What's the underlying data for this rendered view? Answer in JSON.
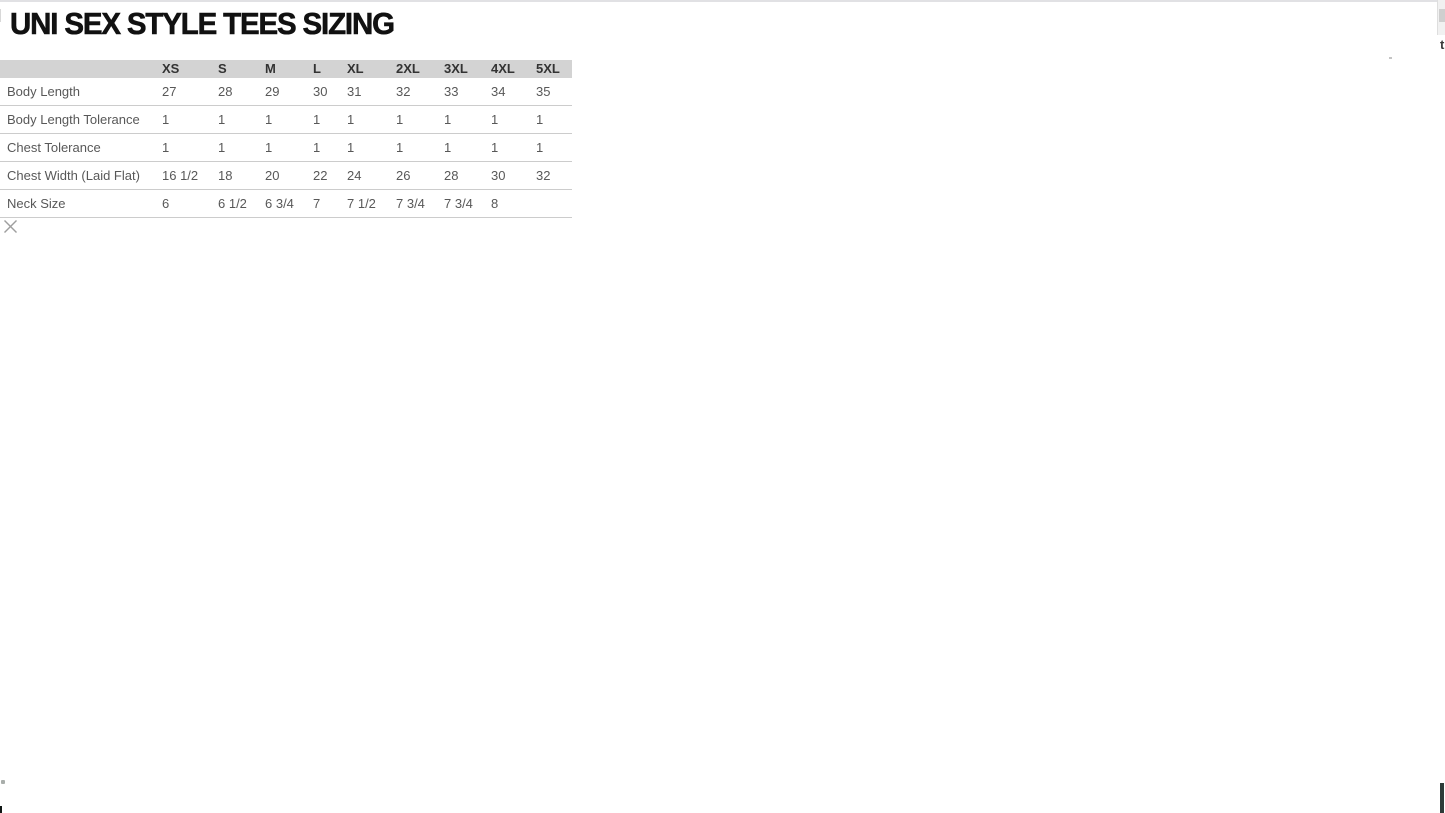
{
  "page": {
    "title": "UNI SEX STYLE TEES SIZING"
  },
  "sizing_table": {
    "size_columns": [
      "XS",
      "S",
      "M",
      "L",
      "XL",
      "2XL",
      "3XL",
      "4XL",
      "5XL"
    ],
    "rows": [
      {
        "label": "Body Length",
        "values": [
          "27",
          "28",
          "29",
          "30",
          "31",
          "32",
          "33",
          "34",
          "35"
        ]
      },
      {
        "label": "Body Length Tolerance",
        "values": [
          "1",
          "1",
          "1",
          "1",
          "1",
          "1",
          "1",
          "1",
          "1"
        ]
      },
      {
        "label": "Chest Tolerance",
        "values": [
          "1",
          "1",
          "1",
          "1",
          "1",
          "1",
          "1",
          "1",
          "1"
        ]
      },
      {
        "label": "Chest Width (Laid Flat)",
        "values": [
          "16 1/2",
          "18",
          "20",
          "22",
          "24",
          "26",
          "28",
          "30",
          "32"
        ]
      },
      {
        "label": "Neck Size",
        "values": [
          "6",
          "6 1/2",
          "6 3/4",
          "7",
          "7 1/2",
          "7 3/4",
          "7 3/4",
          "8",
          ""
        ]
      }
    ]
  },
  "fragments": {
    "top_right_text": "t"
  },
  "icons": {
    "close": "x-cross"
  },
  "colors": {
    "header_bg": "#d3d3d3",
    "header_text": "#333333",
    "body_text": "#585858",
    "row_border": "#cccccc",
    "close_icon": "#9e9e9e",
    "top_edge_line": "#e1e1e4",
    "scrollbar_track": "#f1f1f1",
    "scrollbar_thumb": "#cfcfcf",
    "bottom_right_bar": "#2d3b38"
  }
}
